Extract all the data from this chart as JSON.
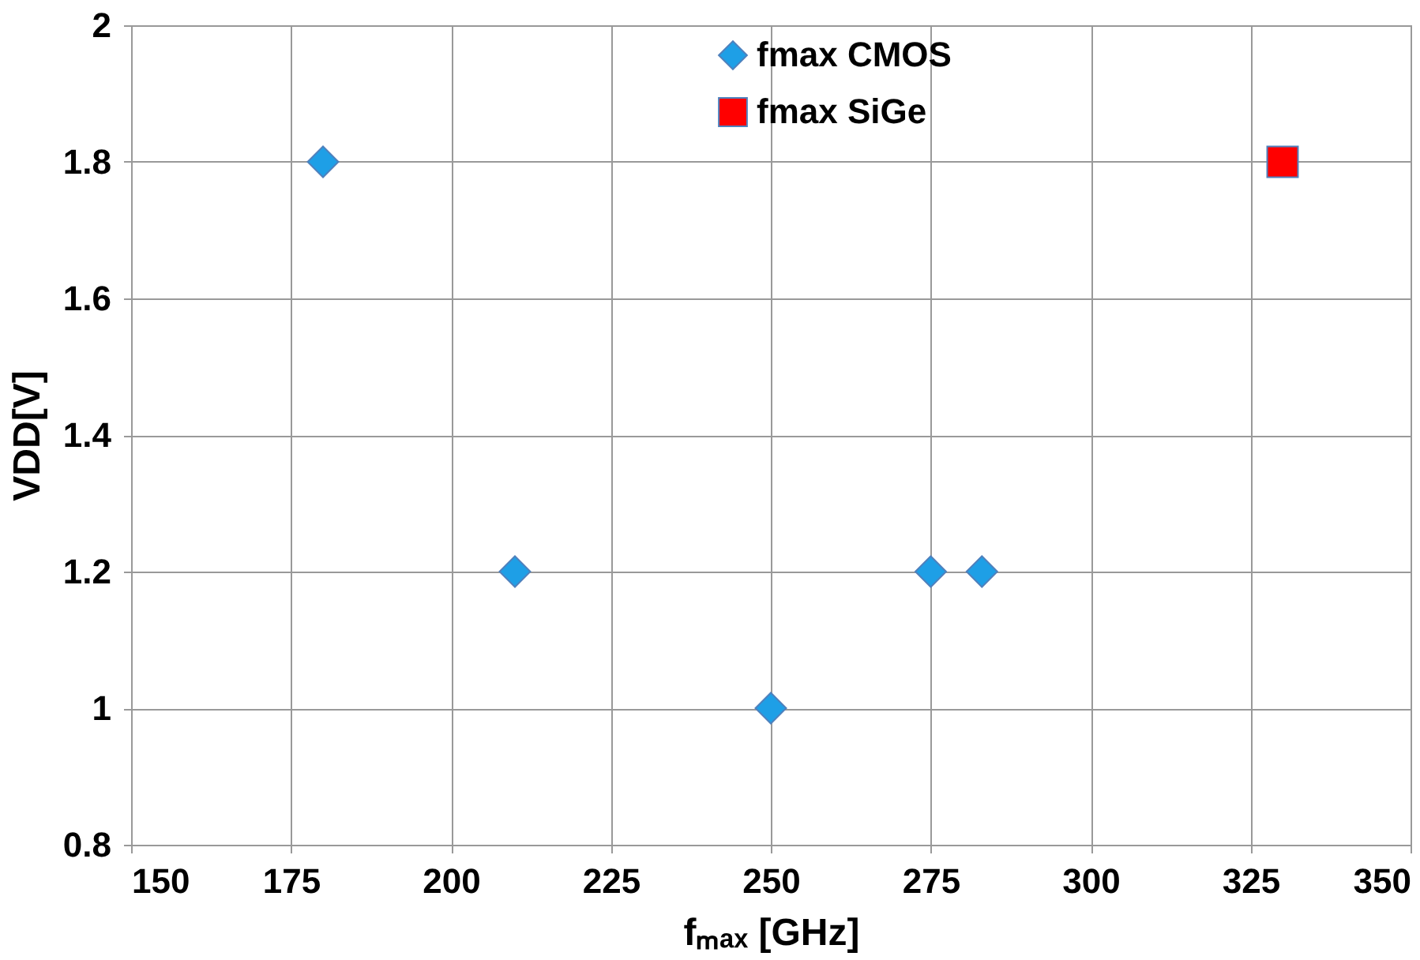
{
  "chart_data": {
    "type": "scatter",
    "xlabel": "fₘₐₓ [GHz]",
    "ylabel": "VDD[V]",
    "xlim": [
      150,
      350
    ],
    "xticks": [
      150,
      175,
      200,
      225,
      250,
      275,
      300,
      325,
      350
    ],
    "ylim": [
      0.8,
      2
    ],
    "yticks": [
      0.8,
      1,
      1.2,
      1.4,
      1.6,
      1.8,
      2
    ],
    "grid": true,
    "legend": "top right",
    "series": [
      {
        "name": "fmax CMOS",
        "color": "#1e9fe6",
        "marker": "diamond",
        "x": [
          180,
          210,
          250,
          275,
          283
        ],
        "values": [
          1.8,
          1.2,
          1.0,
          1.2,
          1.2
        ]
      },
      {
        "name": "fmax SiGe",
        "color": "#ff0000",
        "marker": "square",
        "x": [
          330
        ],
        "values": [
          1.8
        ]
      }
    ]
  }
}
